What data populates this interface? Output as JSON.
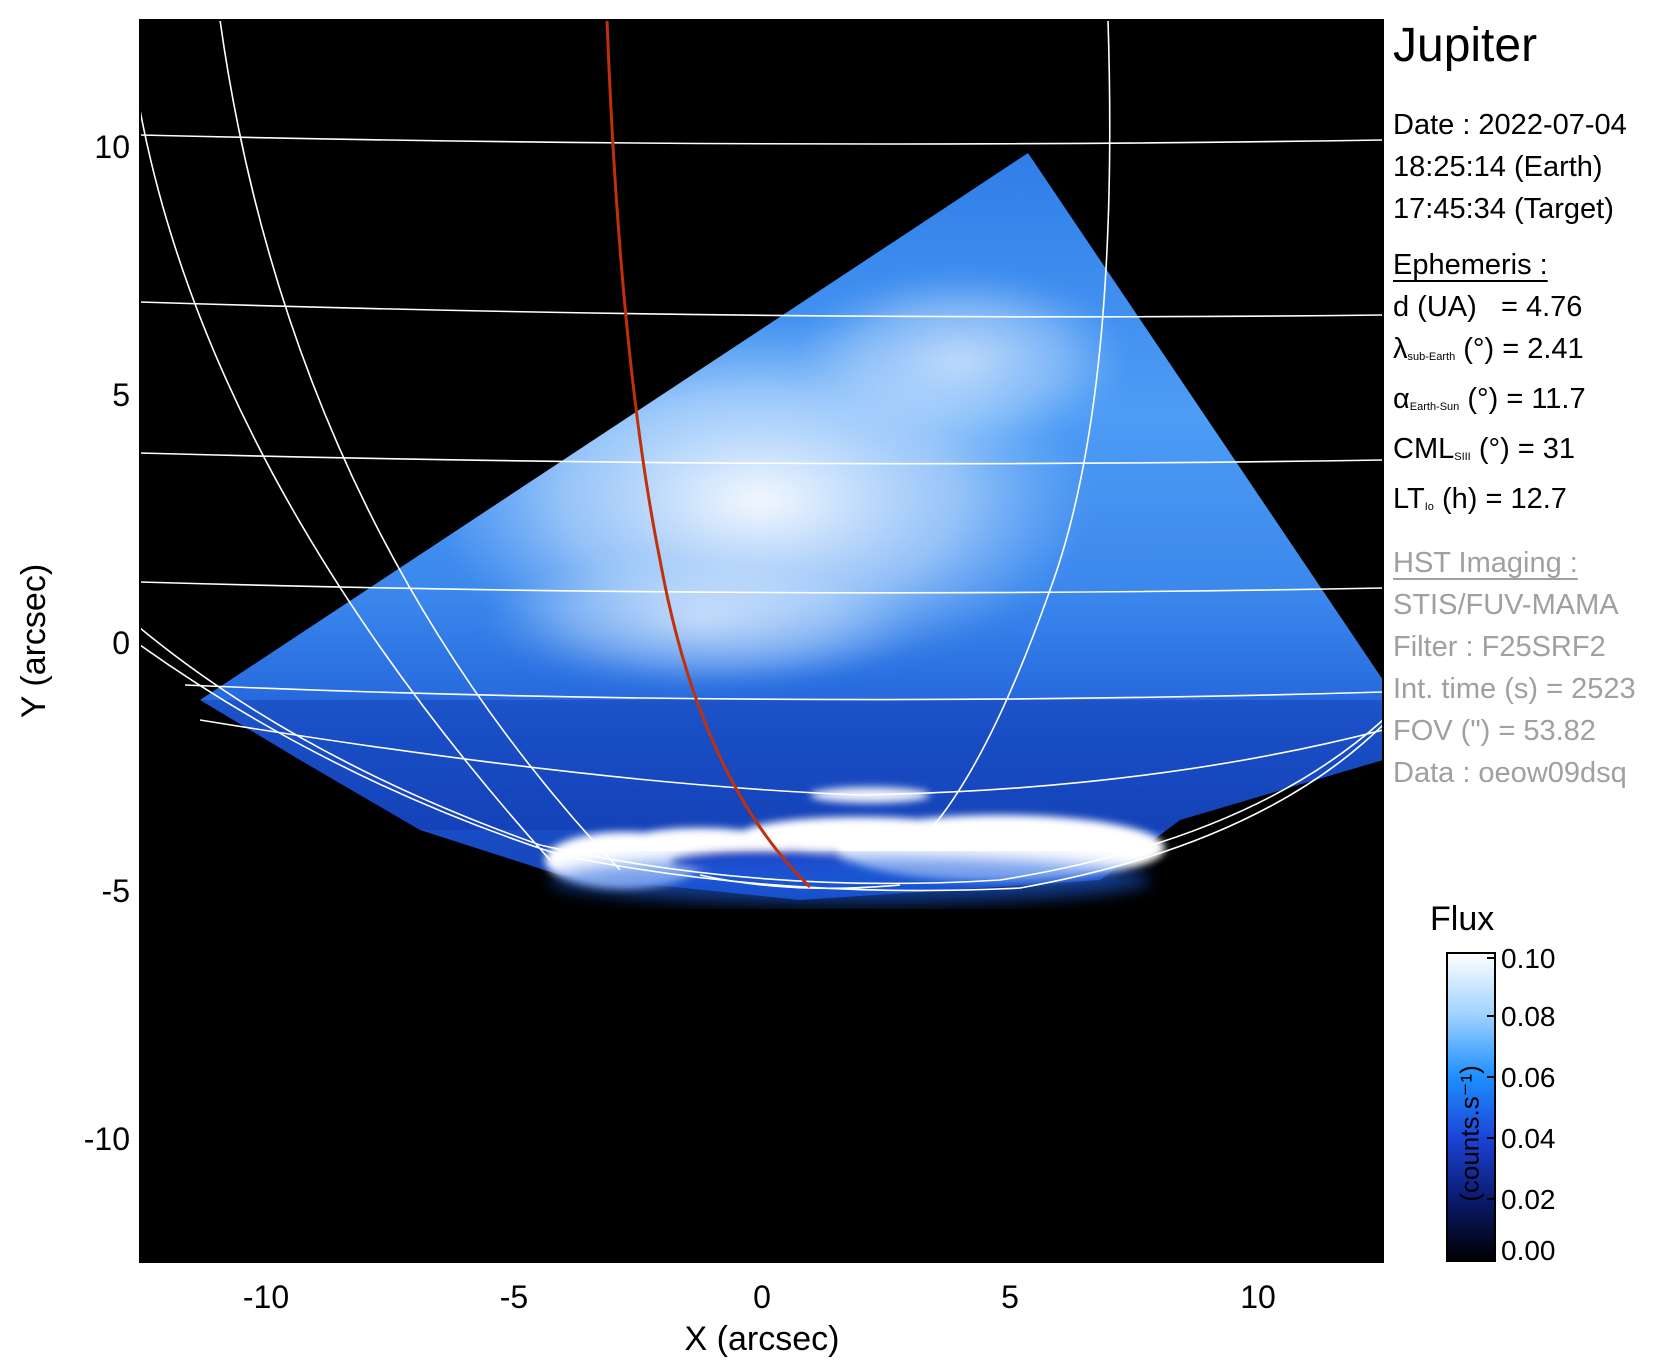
{
  "planet": "Jupiter",
  "date_line": "Date : 2022-07-04",
  "time_earth": "18:25:14 (Earth)",
  "time_target": "17:45:34 (Target)",
  "ephemeris": {
    "header": "Ephemeris :",
    "d_label": "d (UA)",
    "d_value": "= 4.76",
    "lambda_sym": "λ",
    "lambda_sub": "sub-Earth",
    "lambda_value": "(°) = 2.41",
    "alpha_sym": "α",
    "alpha_sub": "Earth-Sun",
    "alpha_value": "(°) = 11.7",
    "cml_sym": "CML",
    "cml_sub": "SIII",
    "cml_value": "(°) = 31",
    "lt_sym": "LT",
    "lt_sub": "Io",
    "lt_value": "(h) = 12.7"
  },
  "hst": {
    "header": "HST Imaging :",
    "instrument": "STIS/FUV-MAMA",
    "filter": "Filter : F25SRF2",
    "int_time": "Int. time (s) = 2523",
    "fov": "FOV (\") = 53.82",
    "data": "Data : oeow09dsq"
  },
  "axes": {
    "xlabel": "X (arcsec)",
    "ylabel": "Y (arcsec)",
    "xticks": [
      "-10",
      "-5",
      "0",
      "5",
      "10"
    ],
    "yticks": [
      "10",
      "5",
      "0",
      "-5",
      "-10"
    ],
    "xrange": [
      -12.5,
      12.5
    ],
    "yrange": [
      -12.5,
      12.5
    ]
  },
  "colorbar": {
    "title": "Flux",
    "unit": "(counts.s⁻¹)",
    "ticks": [
      "0.10",
      "0.08",
      "0.06",
      "0.04",
      "0.02",
      "0.00"
    ],
    "range": [
      0,
      0.1
    ],
    "colors": [
      "#000000",
      "#0a1a6e",
      "#1b44d6",
      "#1e90ff",
      "#9fd2ff",
      "#ffffff"
    ]
  },
  "colors": {
    "grid": "#ffffff",
    "io_footpath": "#c0300a",
    "background": "#000000"
  }
}
